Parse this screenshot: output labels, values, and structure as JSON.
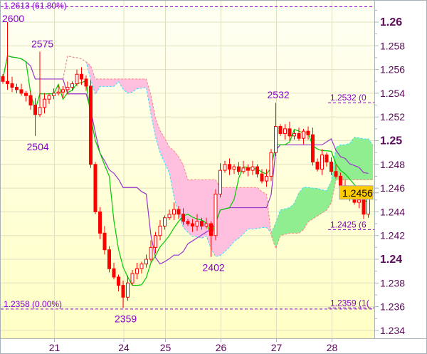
{
  "chart_data": {
    "type": "candlestick",
    "indicator": "ichimoku",
    "ylim": [
      1.2333,
      1.2618
    ],
    "yticks": [
      1.234,
      1.236,
      1.238,
      1.24,
      1.242,
      1.244,
      1.246,
      1.248,
      1.25,
      1.252,
      1.254,
      1.256,
      1.258,
      1.26
    ],
    "yticks_major": [
      1.24,
      1.25,
      1.26
    ],
    "ytick_labels": [
      "1.234",
      "1.236",
      "1.238",
      "1.24",
      "1.242",
      "1.244",
      "1.246",
      "1.248",
      "1.25",
      "1.252",
      "1.254",
      "1.256",
      "1.258",
      "1.26"
    ],
    "xticks": [
      {
        "label": "21",
        "index": 11
      },
      {
        "label": "24",
        "index": 26
      },
      {
        "label": "25",
        "index": 35
      },
      {
        "label": "26",
        "index": 47
      },
      {
        "label": "27",
        "index": 59
      },
      {
        "label": "28",
        "index": 71
      }
    ],
    "close": [
      1.255,
      1.2548,
      1.2545,
      1.2543,
      1.254,
      1.2538,
      1.253,
      1.2522,
      1.2528,
      1.2535,
      1.2538,
      1.254,
      1.2541,
      1.2543,
      1.2545,
      1.2548,
      1.2556,
      1.2552,
      1.2546,
      1.248,
      1.244,
      1.2422,
      1.2408,
      1.2392,
      1.2385,
      1.2378,
      1.2368,
      1.238,
      1.2388,
      1.2392,
      1.2396,
      1.24,
      1.241,
      1.242,
      1.2428,
      1.2435,
      1.2438,
      1.2442,
      1.2438,
      1.2432,
      1.243,
      1.2428,
      1.2432,
      1.2428,
      1.243,
      1.242,
      1.2455,
      1.2475,
      1.248,
      1.2476,
      1.2478,
      1.2474,
      1.2477,
      1.2475,
      1.2478,
      1.2472,
      1.2466,
      1.247,
      1.249,
      1.2512,
      1.2506,
      1.251,
      1.2504,
      1.2506,
      1.2502,
      1.2508,
      1.2505,
      1.2482,
      1.2476,
      1.2488,
      1.2482,
      1.2474,
      1.247,
      1.2462,
      1.2458,
      1.2452,
      1.2448,
      1.245,
      1.2438,
      1.2456
    ],
    "extremes": [
      {
        "index": 1,
        "type": "high",
        "price": 1.26,
        "label": "2600"
      },
      {
        "index": 8,
        "type": "high",
        "price": 1.2575,
        "label": "2575"
      },
      {
        "index": 7,
        "type": "low",
        "price": 1.2504,
        "label": "2504"
      },
      {
        "index": 26,
        "type": "low",
        "price": 1.2359,
        "label": "2359"
      },
      {
        "index": 45,
        "type": "low",
        "price": 1.2402,
        "label": "2402"
      },
      {
        "index": 59,
        "type": "high",
        "price": 1.2532,
        "label": "2532"
      }
    ],
    "fib_levels_left": [
      {
        "price": 1.2613,
        "label": "1.2613 (61.80%)"
      },
      {
        "price": 1.2358,
        "label": "1.2358 (0.00%)"
      }
    ],
    "fib_levels_right": [
      {
        "price": 1.2532,
        "label": "1.2532 (0"
      },
      {
        "price": 1.2425,
        "label": "1.2425 (6"
      },
      {
        "price": 1.2359,
        "label": "1.2359 (1("
      }
    ],
    "current_price": "1.2456",
    "colors": {
      "candle": "#ff0000",
      "tenkan": "#00cc00",
      "kijun": "#9933cc",
      "cloud_bull": "#90ee90",
      "cloud_bear": "#ffc0e0",
      "span_a": "#33ddff",
      "span_b": "#ff8080",
      "fib": "#8800cc",
      "price_badge": "#ffcc00",
      "grid": "#e0e0c0"
    }
  }
}
